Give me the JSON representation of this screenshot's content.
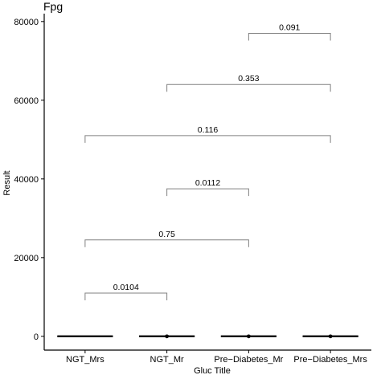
{
  "chart_data": {
    "type": "box",
    "title": "Fpg",
    "xlabel": "Gluc  Title",
    "ylabel": "Result",
    "categories": [
      "NGT_Mrs",
      "NGT_Mr",
      "Pre−Diabetes_Mr",
      "Pre−Diabetes_Mrs"
    ],
    "medians": [
      0,
      0,
      0,
      0
    ],
    "has_median_dot": [
      false,
      true,
      true,
      true
    ],
    "ylim": [
      -3500,
      82000
    ],
    "yticks": [
      0,
      20000,
      40000,
      60000,
      80000
    ],
    "grid": false,
    "legend": "none",
    "comparisons": [
      {
        "from": 0,
        "to": 1,
        "y": 11000,
        "label": "0.0104"
      },
      {
        "from": 0,
        "to": 2,
        "y": 24500,
        "label": "0.75"
      },
      {
        "from": 1,
        "to": 2,
        "y": 37500,
        "label": "0.0112"
      },
      {
        "from": 0,
        "to": 3,
        "y": 51000,
        "label": "0.116"
      },
      {
        "from": 1,
        "to": 3,
        "y": 64000,
        "label": "0.353"
      },
      {
        "from": 2,
        "to": 3,
        "y": 77000,
        "label": "0.091"
      }
    ],
    "colors": {
      "box": "#000000",
      "bracket": "#808080",
      "axis": "#000000"
    }
  }
}
